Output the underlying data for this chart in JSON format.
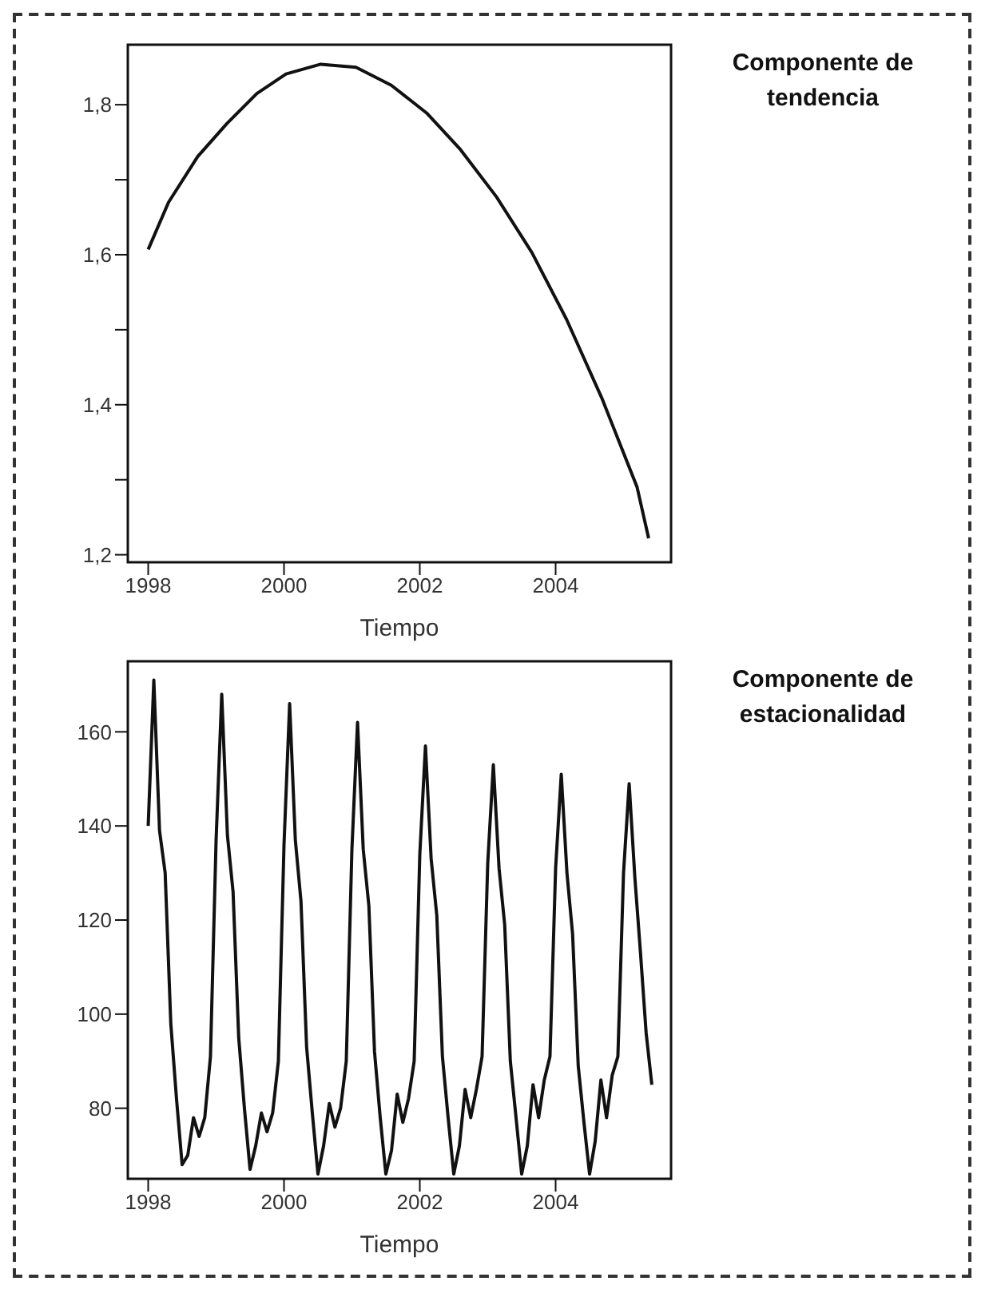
{
  "chart_data": [
    {
      "type": "line",
      "xlabel": "Tiempo",
      "grid": false,
      "series": [
        {
          "name": "Componente de tendencia",
          "color": "#111111",
          "x": [
            1998.0,
            1998.3,
            1998.73,
            1999.16,
            1999.6,
            2000.03,
            2000.54,
            2001.06,
            2001.58,
            2002.1,
            2002.6,
            2003.13,
            2003.65,
            2004.16,
            2004.68,
            2005.2,
            2005.37
          ],
          "values": [
            1.607,
            1.67,
            1.731,
            1.775,
            1.815,
            1.841,
            1.854,
            1.85,
            1.826,
            1.789,
            1.74,
            1.677,
            1.603,
            1.514,
            1.409,
            1.29,
            1.222
          ]
        }
      ],
      "xlim": [
        1997.7,
        2005.7
      ],
      "xticks": [
        1998,
        2000,
        2002,
        2004
      ],
      "ylim": [
        1.19,
        1.88
      ],
      "yticks": [
        {
          "value": 1.2,
          "label": "1,2"
        },
        {
          "value": 1.3,
          "label": null
        },
        {
          "value": 1.4,
          "label": "1,4"
        },
        {
          "value": 1.5,
          "label": null
        },
        {
          "value": 1.6,
          "label": "1,6"
        },
        {
          "value": 1.7,
          "label": null
        },
        {
          "value": 1.8,
          "label": "1,8"
        }
      ]
    },
    {
      "type": "line",
      "xlabel": "Tiempo",
      "grid": false,
      "series": [
        {
          "name": "Componente de estacionalidad",
          "color": "#111111",
          "x": [
            1998.0,
            1998.083,
            1998.167,
            1998.25,
            1998.333,
            1998.417,
            1998.5,
            1998.583,
            1998.667,
            1998.75,
            1998.833,
            1998.917,
            1999.0,
            1999.083,
            1999.167,
            1999.25,
            1999.333,
            1999.417,
            1999.5,
            1999.583,
            1999.667,
            1999.75,
            1999.833,
            1999.917,
            2000.0,
            2000.083,
            2000.167,
            2000.25,
            2000.333,
            2000.417,
            2000.5,
            2000.583,
            2000.667,
            2000.75,
            2000.833,
            2000.917,
            2001.0,
            2001.083,
            2001.167,
            2001.25,
            2001.333,
            2001.417,
            2001.5,
            2001.583,
            2001.667,
            2001.75,
            2001.833,
            2001.917,
            2002.0,
            2002.083,
            2002.167,
            2002.25,
            2002.333,
            2002.417,
            2002.5,
            2002.583,
            2002.667,
            2002.75,
            2002.833,
            2002.917,
            2003.0,
            2003.083,
            2003.167,
            2003.25,
            2003.333,
            2003.417,
            2003.5,
            2003.583,
            2003.667,
            2003.75,
            2003.833,
            2003.917,
            2004.0,
            2004.083,
            2004.167,
            2004.25,
            2004.333,
            2004.417,
            2004.5,
            2004.583,
            2004.667,
            2004.75,
            2004.833,
            2004.917,
            2005.0,
            2005.083,
            2005.167,
            2005.25,
            2005.333,
            2005.417
          ],
          "values": [
            140,
            171,
            139,
            130,
            98,
            82,
            68,
            70,
            78,
            74,
            78,
            91,
            137,
            168,
            138,
            126,
            95,
            80,
            67,
            72,
            79,
            75,
            79,
            90,
            136,
            166,
            137,
            124,
            93,
            79,
            66,
            72,
            81,
            76,
            80,
            90,
            135,
            162,
            135,
            123,
            92,
            78,
            66,
            71,
            83,
            77,
            82,
            90,
            134,
            157,
            133,
            121,
            91,
            78,
            66,
            72,
            84,
            78,
            84,
            91,
            132,
            153,
            131,
            119,
            90,
            78,
            66,
            72,
            85,
            78,
            86,
            91,
            131,
            151,
            130,
            117,
            89,
            77,
            66,
            73,
            86,
            78,
            87,
            91,
            130,
            149,
            129,
            113,
            96,
            85
          ]
        }
      ],
      "xlim": [
        1997.7,
        2005.7
      ],
      "xticks": [
        1998,
        2000,
        2002,
        2004
      ],
      "ylim": [
        65,
        175
      ],
      "yticks": [
        80,
        100,
        120,
        140,
        160
      ]
    }
  ]
}
